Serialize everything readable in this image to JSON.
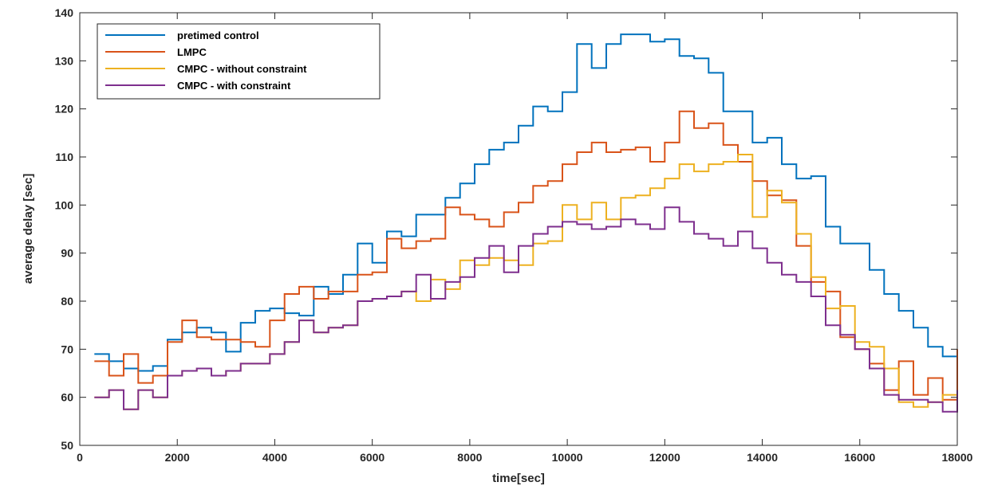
{
  "chart_data": {
    "type": "line",
    "xlabel": "time[sec]",
    "ylabel": "average delay [sec]",
    "xlim": [
      0,
      18000
    ],
    "ylim": [
      50,
      140
    ],
    "xticks": [
      0,
      2000,
      4000,
      6000,
      8000,
      10000,
      12000,
      14000,
      16000,
      18000
    ],
    "yticks": [
      50,
      60,
      70,
      80,
      90,
      100,
      110,
      120,
      130,
      140
    ],
    "grid": false,
    "legend_position": "top-left",
    "step": "post",
    "x": [
      300,
      600,
      900,
      1200,
      1500,
      1800,
      2100,
      2400,
      2700,
      3000,
      3300,
      3600,
      3900,
      4200,
      4500,
      4800,
      5100,
      5400,
      5700,
      6000,
      6300,
      6600,
      6900,
      7200,
      7500,
      7800,
      8100,
      8400,
      8700,
      9000,
      9300,
      9600,
      9900,
      10200,
      10500,
      10800,
      11100,
      11400,
      11700,
      12000,
      12300,
      12600,
      12900,
      13200,
      13500,
      13800,
      14100,
      14400,
      14700,
      15000,
      15300,
      15600,
      15900,
      16200,
      16500,
      16800,
      17100,
      17400,
      17700,
      18000
    ],
    "series": [
      {
        "name": "pretimed control",
        "color": "#0072BD",
        "values": [
          69,
          67.5,
          66,
          65.5,
          66.5,
          72,
          73.5,
          74.5,
          73.5,
          69.5,
          75.5,
          78,
          78.5,
          77.5,
          77,
          83,
          81.5,
          85.5,
          92,
          88,
          94.5,
          93.5,
          98,
          98,
          101.5,
          104.5,
          108.5,
          111.5,
          113,
          116.5,
          120.5,
          119.5,
          123.5,
          133.5,
          128.5,
          133.5,
          135.5,
          135.5,
          134,
          134.5,
          131,
          130.5,
          127.5,
          119.5,
          119.5,
          113,
          114,
          108.5,
          105.5,
          106,
          95.5,
          92,
          92,
          86.5,
          81.5,
          78,
          74.5,
          70.5,
          68.5,
          68.5
        ]
      },
      {
        "name": "LMPC",
        "color": "#D95319",
        "values": [
          67.5,
          64.5,
          69,
          63,
          64.5,
          71.5,
          76,
          72.5,
          72,
          72,
          71.5,
          70.5,
          76,
          81.5,
          83,
          80.5,
          82,
          82,
          85.5,
          86,
          93,
          91,
          92.5,
          93,
          99.5,
          98,
          97,
          95.5,
          98.5,
          100.5,
          104,
          105,
          108.5,
          111,
          113,
          111,
          111.5,
          112,
          109,
          113,
          119.5,
          116,
          117,
          112.5,
          109,
          105,
          102,
          101,
          91.5,
          84,
          82,
          72.5,
          70,
          67,
          61.5,
          67.5,
          60.5,
          64,
          59.5,
          70
        ]
      },
      {
        "name": "CMPC - without constraint",
        "color": "#EDB120",
        "values": [
          60,
          61.5,
          57.5,
          61.5,
          60,
          64.5,
          65.5,
          66,
          64.5,
          65.5,
          67,
          67,
          69,
          71.5,
          76,
          73.5,
          74.5,
          75,
          80,
          80.5,
          81,
          82,
          80,
          84.5,
          82.5,
          88.5,
          87.5,
          89,
          88.5,
          87.5,
          92,
          92.5,
          100,
          97,
          100.5,
          97,
          101.5,
          102,
          103.5,
          105.5,
          108.5,
          107,
          108.5,
          109,
          110.5,
          97.5,
          103,
          100.5,
          94,
          85,
          78.5,
          79,
          71.5,
          70.5,
          66,
          59,
          58,
          59,
          60.5,
          60
        ]
      },
      {
        "name": "CMPC - with constraint",
        "color": "#7E2F8E",
        "values": [
          60,
          61.5,
          57.5,
          61.5,
          60,
          64.5,
          65.5,
          66,
          64.5,
          65.5,
          67,
          67,
          69,
          71.5,
          76,
          73.5,
          74.5,
          75,
          80,
          80.5,
          81,
          82,
          85.5,
          80.5,
          84,
          85,
          89,
          91.5,
          86,
          91.5,
          94,
          95.5,
          96.5,
          96,
          95,
          95.5,
          97,
          96,
          95,
          99.5,
          96.5,
          94,
          93,
          91.5,
          94.5,
          91,
          88,
          85.5,
          84,
          81,
          75,
          73,
          70,
          66,
          60.5,
          59.5,
          59.5,
          59,
          57,
          61.5
        ]
      }
    ]
  }
}
